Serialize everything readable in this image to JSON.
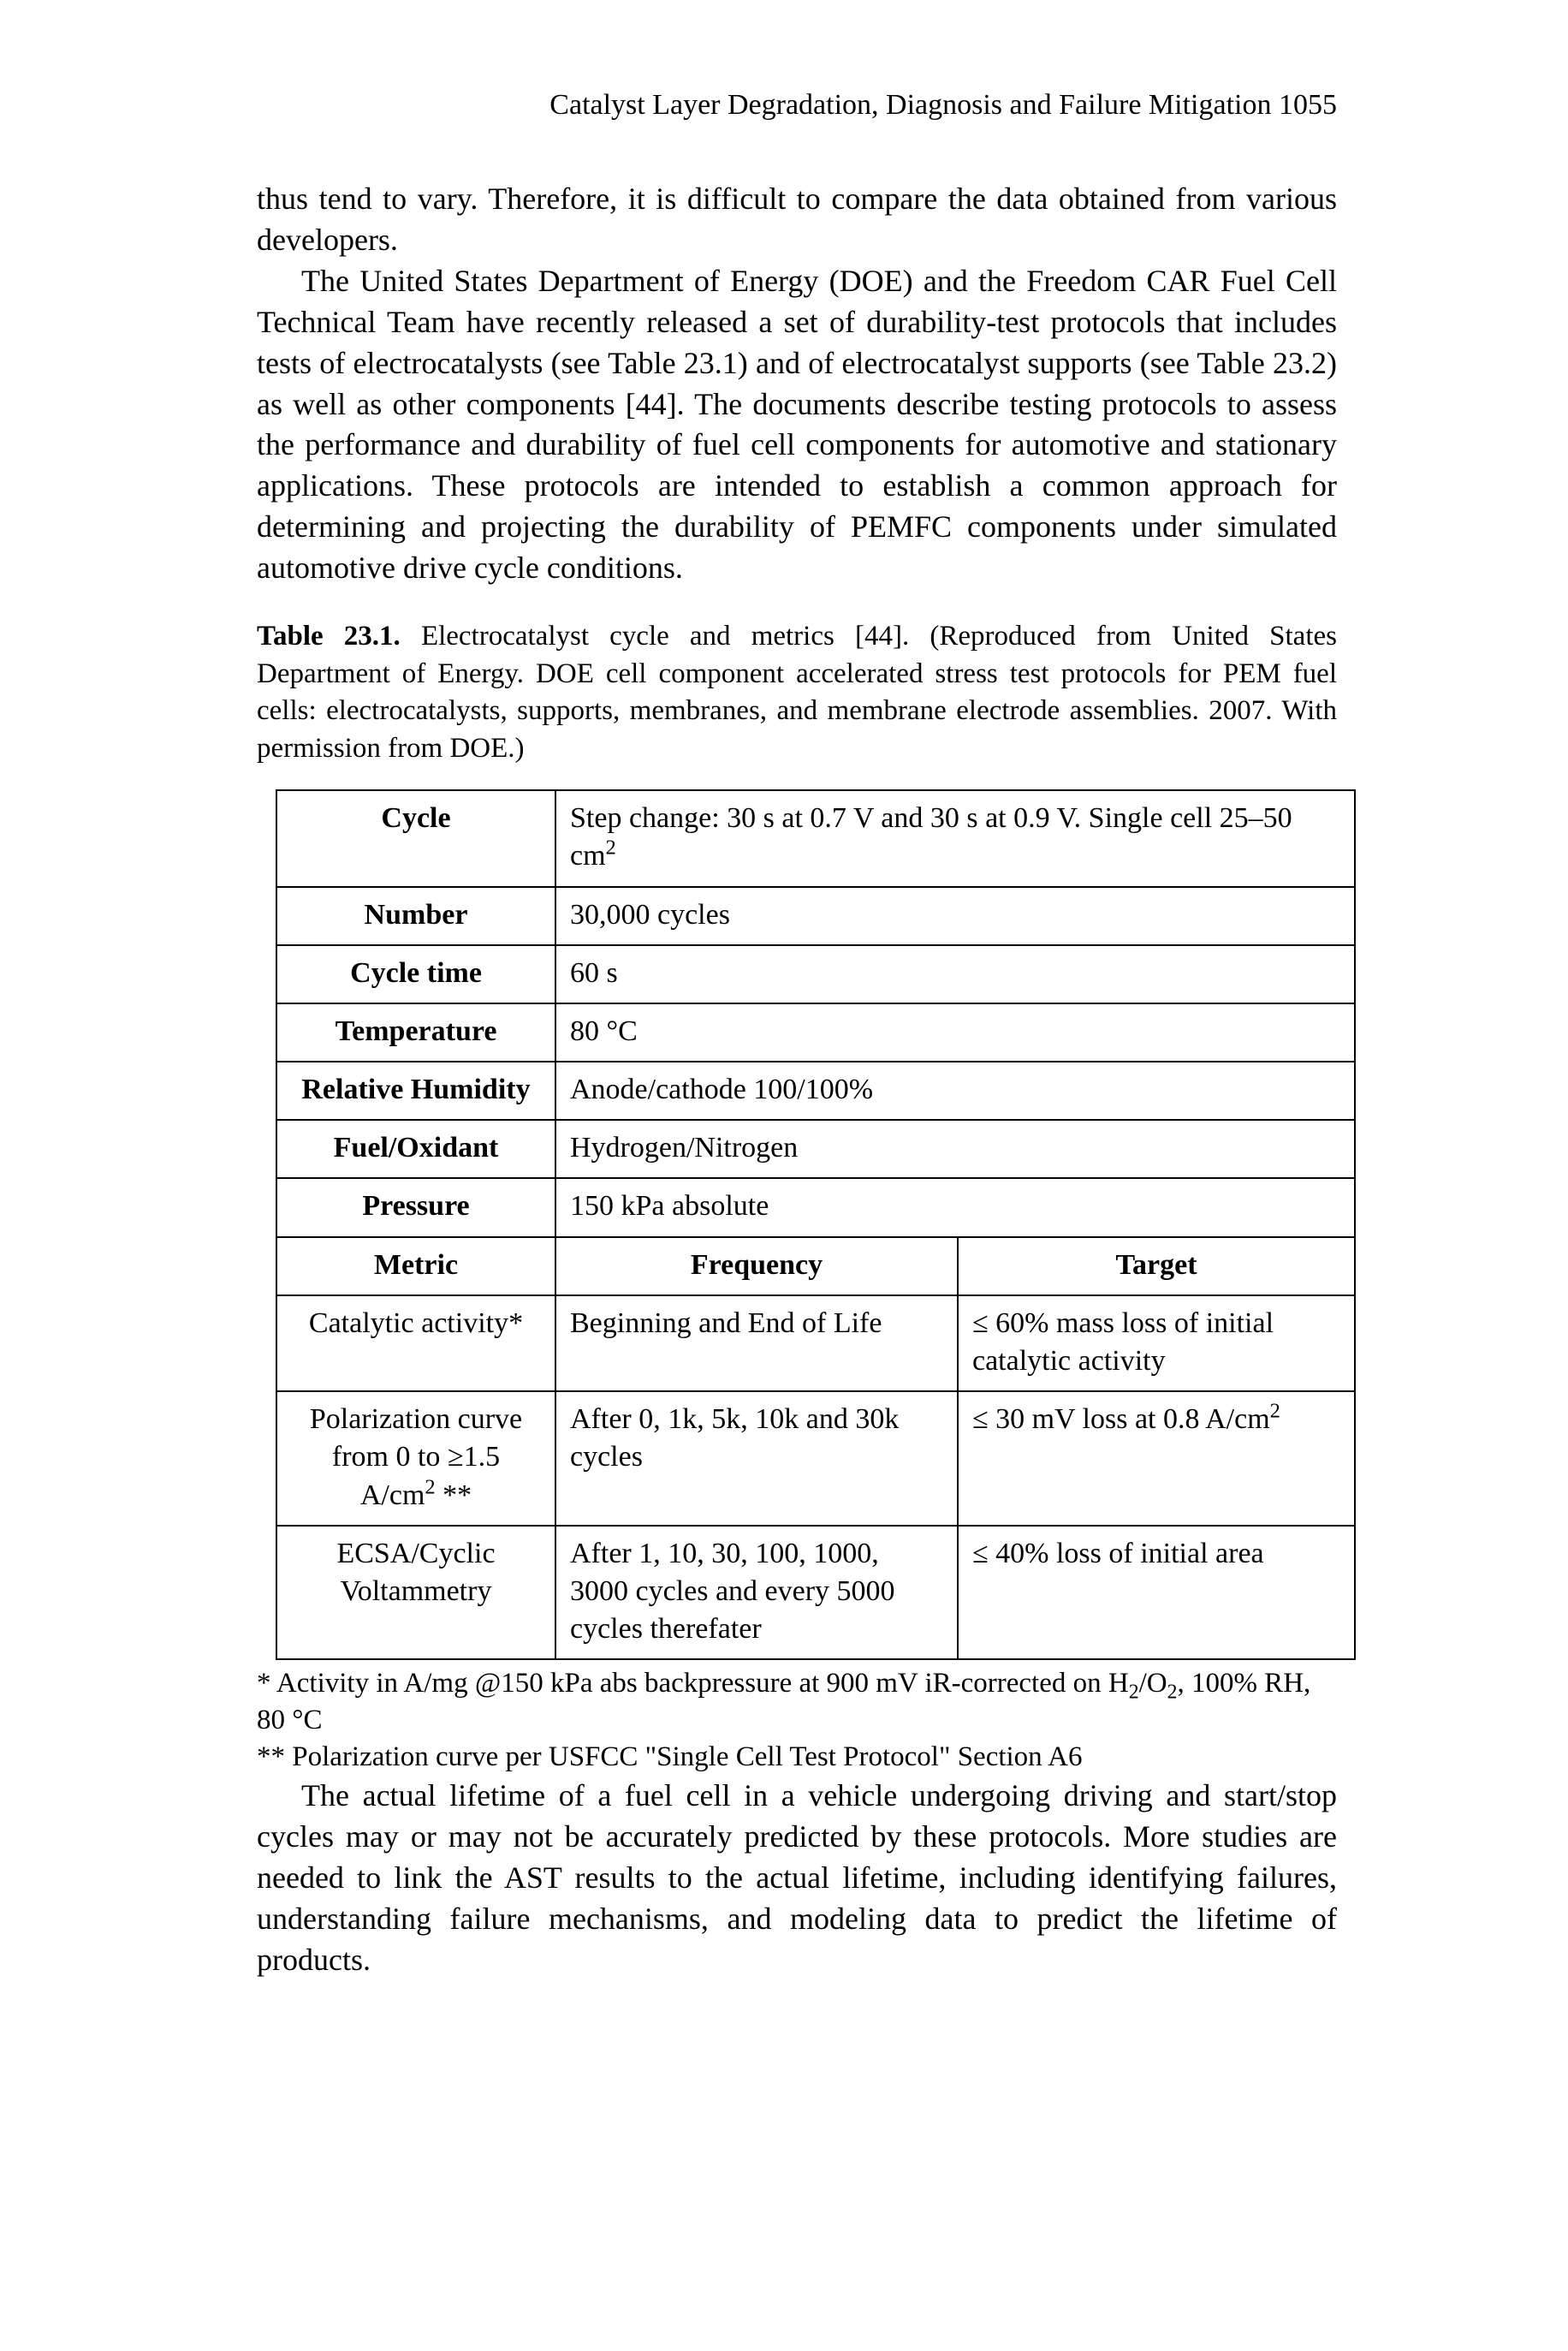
{
  "runningHead": "Catalyst Layer Degradation, Diagnosis and Failure Mitigation  1055",
  "para1": "thus tend to vary. Therefore, it is difficult to compare the data obtained from various developers.",
  "para2": "The United States Department of Energy (DOE) and the Freedom CAR Fuel Cell Technical Team have recently released a set of durability-test protocols that includes tests of electrocatalysts (see Table 23.1) and of electrocatalyst supports (see Table 23.2) as well as other components [44]. The documents describe testing protocols to assess the performance and durability of fuel cell components for automotive and stationary applications. These protocols are intended to establish a common approach for determining and projecting the durability of PEMFC components under simulated automotive drive cycle conditions.",
  "tableCaptionLabel": "Table 23.1.",
  "tableCaptionText": " Electrocatalyst cycle and metrics [44]. (Reproduced from United States Department of Energy. DOE cell component accelerated stress test protocols for PEM fuel cells: electrocatalysts, supports, membranes, and membrane electrode assemblies. 2007. With permission from DOE.)",
  "t231": {
    "rows": [
      {
        "param": "Cycle",
        "value_html": "Step change: 30 s at 0.7 V and 30 s at 0.9 V. Single cell 25–50 cm<sup>2</sup>"
      },
      {
        "param": "Number",
        "value_html": "30,000 cycles"
      },
      {
        "param": "Cycle time",
        "value_html": "60 s"
      },
      {
        "param": "Temperature",
        "value_html": "80 °C"
      },
      {
        "param": "Relative Humidity",
        "value_html": "Anode/cathode 100/100%"
      },
      {
        "param": "Fuel/Oxidant",
        "value_html": "Hydrogen/Nitrogen"
      },
      {
        "param": "Pressure",
        "value_html": "150 kPa absolute"
      }
    ],
    "metricsHeader": {
      "metric": "Metric",
      "frequency": "Frequency",
      "target": "Target"
    },
    "metrics": [
      {
        "metric_html": "Catalytic activity*",
        "frequency_html": "Beginning and End of Life",
        "target_html": "≤ 60% mass loss of initial catalytic activity"
      },
      {
        "metric_html": "Polarization curve from 0 to ≥1.5 A/cm<sup>2</sup>&nbsp;**",
        "frequency_html": "After 0, 1k, 5k, 10k and 30k cycles",
        "target_html": "≤ 30 mV loss at 0.8 A/cm<sup>2</sup>"
      },
      {
        "metric_html": "ECSA/Cyclic Voltammetry",
        "frequency_html": "After 1, 10, 30, 100, 1000, 3000 cycles and every 5000 cycles therefater",
        "target_html": "≤ 40% loss of initial area"
      }
    ]
  },
  "footnote1_html": "* Activity in A/mg @150 kPa abs backpressure at 900 mV iR-corrected on H<sub>2</sub>/O<sub>2</sub>, 100% RH, 80 °C",
  "footnote2_html": "** Polarization curve per USFCC \"Single Cell Test Protocol\" Section A6",
  "para3": "The actual lifetime of a fuel cell in a vehicle undergoing driving and start/stop cycles may or may not be accurately predicted by these protocols. More studies are needed to link the AST results to the actual lifetime, including identifying failures, understanding failure mechanisms, and modeling data to predict the lifetime of products."
}
